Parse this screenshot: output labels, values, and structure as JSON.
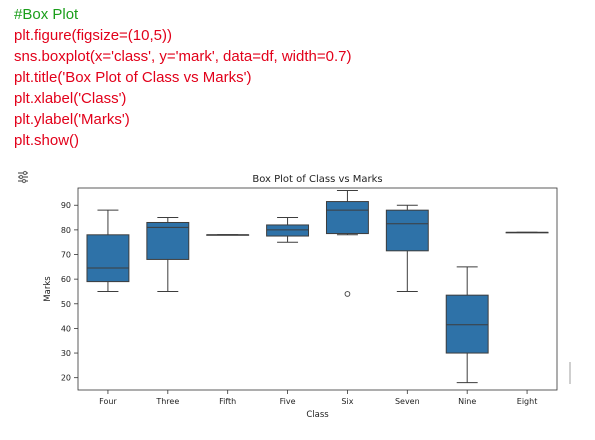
{
  "code": {
    "comment": "#Box Plot",
    "lines": [
      "plt.figure(figsize=(10,5))",
      "sns.boxplot(x='class', y='mark', data=df, width=0.7)",
      "plt.title('Box Plot of Class vs Marks')",
      "plt.xlabel('Class')",
      "plt.ylabel('Marks')",
      "plt.show()"
    ]
  },
  "output": {
    "icon": "output-toggle-icon"
  },
  "colors": {
    "comment": "#1a9e1a",
    "code": "#e2001a",
    "box": "#2e72a8"
  },
  "chart_data": {
    "type": "box",
    "title": "Box Plot of Class vs Marks",
    "xlabel": "Class",
    "ylabel": "Marks",
    "ylim": [
      15,
      97
    ],
    "yticks": [
      20,
      30,
      40,
      50,
      60,
      70,
      80,
      90
    ],
    "grid": false,
    "categories": [
      "Four",
      "Three",
      "Fifth",
      "Five",
      "Six",
      "Seven",
      "Nine",
      "Eight"
    ],
    "boxes": [
      {
        "whisker_low": 55,
        "q1": 59,
        "median": 64.5,
        "q3": 78,
        "whisker_high": 88,
        "outliers": []
      },
      {
        "whisker_low": 55,
        "q1": 68,
        "median": 81,
        "q3": 83,
        "whisker_high": 85,
        "outliers": []
      },
      {
        "whisker_low": 78,
        "q1": 78,
        "median": 78,
        "q3": 78,
        "whisker_high": 78,
        "outliers": []
      },
      {
        "whisker_low": 75,
        "q1": 77.5,
        "median": 80,
        "q3": 82,
        "whisker_high": 85,
        "outliers": []
      },
      {
        "whisker_low": 78,
        "q1": 78.5,
        "median": 88,
        "q3": 91.5,
        "whisker_high": 96,
        "outliers": [
          54
        ]
      },
      {
        "whisker_low": 55,
        "q1": 71.5,
        "median": 82.5,
        "q3": 88,
        "whisker_high": 90,
        "outliers": []
      },
      {
        "whisker_low": 18,
        "q1": 30,
        "median": 41.5,
        "q3": 53.5,
        "whisker_high": 65,
        "outliers": []
      },
      {
        "whisker_low": 79,
        "q1": 79,
        "median": 79,
        "q3": 79,
        "whisker_high": 79,
        "outliers": []
      }
    ]
  }
}
